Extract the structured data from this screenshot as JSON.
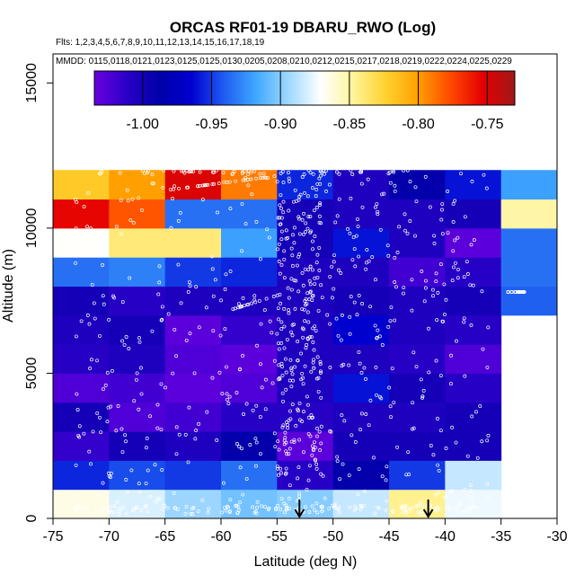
{
  "chart_data": {
    "type": "heatmap",
    "title": "ORCAS RF01-19 DBARU_RWO (Log)",
    "flights_label": "Flts: 1,2,3,4,5,6,7,8,9,10,11,12,13,14,15,16,17,18,19",
    "dates_label": "MMDD: 0115,0118,0121,0123,0125,0125,0130,0205,0208,0210,0212,0215,0217,0218,0219,0222,0224,0225,0229",
    "xlabel": "Latitude (deg N)",
    "ylabel": "Altitude (m)",
    "xlim": [
      -75,
      -30
    ],
    "ylim": [
      0,
      16000
    ],
    "xticks": [
      -75,
      -70,
      -65,
      -60,
      -55,
      -50,
      -45,
      -40,
      -35,
      -30
    ],
    "xtick_labels": [
      "-75",
      "-70",
      "-65",
      "-60",
      "-55",
      "-50",
      "-45",
      "-40",
      "-35",
      "-30"
    ],
    "yticks": [
      0,
      5000,
      10000,
      15000
    ],
    "ytick_labels": [
      "0",
      "5000",
      "10000",
      "15000"
    ],
    "colorbar": {
      "range": [
        -1.035,
        -0.73
      ],
      "ticks": [
        -1.0,
        -0.95,
        -0.9,
        -0.85,
        -0.8,
        -0.75
      ],
      "tick_labels": [
        "-1.00",
        "-0.95",
        "-0.90",
        "-0.85",
        "-0.80",
        "-0.75"
      ],
      "stops": [
        "#6a00e0",
        "#2a00c8",
        "#0000a8",
        "#0000d0",
        "#1e5cf0",
        "#3fa8ff",
        "#9fd8ff",
        "#ffffff",
        "#fff49a",
        "#ffd230",
        "#ffa000",
        "#ff4a00",
        "#e40000",
        "#a01818"
      ]
    },
    "lat_bins": [
      -75,
      -70,
      -65,
      -60,
      -55,
      -50,
      -45,
      -40,
      -35,
      -30
    ],
    "alt_bins": [
      0,
      1000,
      2000,
      3000,
      4000,
      5000,
      6000,
      7000,
      8000,
      9000,
      10000,
      11000,
      12000
    ],
    "grid_values": [
      [
        -0.865,
        -0.88,
        -0.895,
        -0.905,
        -0.9,
        -0.885,
        -0.845,
        -0.875,
        null
      ],
      [
        -0.955,
        -0.945,
        -0.95,
        -0.935,
        -1.01,
        -0.99,
        -0.95,
        -0.885,
        null
      ],
      [
        -1.015,
        -1.0,
        -1.005,
        -0.99,
        -1.03,
        -1.0,
        -1.0,
        -1.0,
        null
      ],
      [
        -1.0,
        -1.025,
        -1.02,
        -1.01,
        -1.01,
        -1.005,
        -1.005,
        -1.0,
        null
      ],
      [
        -1.025,
        -1.02,
        -1.03,
        -1.025,
        -1.005,
        -0.96,
        -1.0,
        -1.01,
        null
      ],
      [
        -1.01,
        -1.005,
        -1.025,
        -1.03,
        -1.005,
        -1.005,
        -1.01,
        -1.025,
        null
      ],
      [
        -1.005,
        -1.0,
        -1.03,
        -1.015,
        -1.005,
        -0.965,
        -1.005,
        -1.01,
        null
      ],
      [
        -1.0,
        -1.01,
        -1.005,
        -1.005,
        -1.005,
        -1.0,
        -1.005,
        -1.0,
        -0.94
      ],
      [
        -0.935,
        -0.93,
        -0.95,
        -0.955,
        -1.005,
        -1.005,
        -1.02,
        -1.01,
        -0.935
      ],
      [
        -0.87,
        -0.84,
        -0.84,
        -0.92,
        -1.0,
        -0.96,
        -1.005,
        -1.03,
        -0.935
      ],
      [
        -0.755,
        -0.78,
        -0.935,
        -0.935,
        -1.0,
        -1.005,
        -1.005,
        -1.0,
        -0.85
      ],
      [
        -0.82,
        -0.8,
        -0.75,
        -0.79,
        -0.955,
        -1.005,
        -0.99,
        -0.96,
        -0.92
      ]
    ],
    "arrows": [
      {
        "lat": -53.0,
        "label": "arrow"
      },
      {
        "lat": -41.5,
        "label": "arrow"
      }
    ]
  }
}
